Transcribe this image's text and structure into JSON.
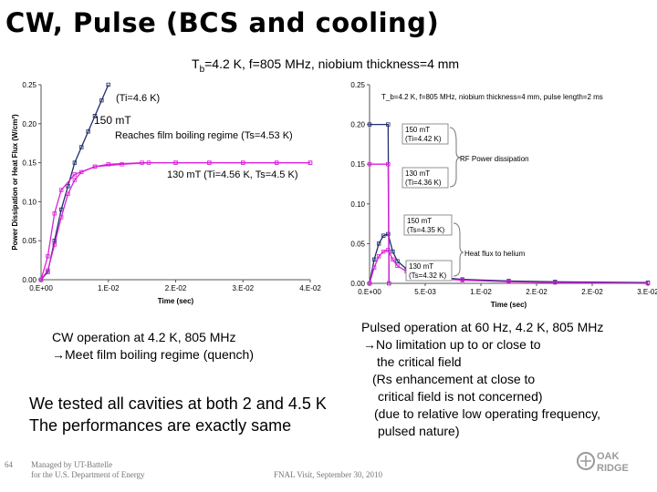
{
  "slide": {
    "title": "CW, Pulse (BCS and cooling)",
    "subtitle_main": "T",
    "subtitle_sub": "b",
    "subtitle_rest": "=4.2 K, f=805 MHz, niobium thickness=4 mm"
  },
  "left_chart": {
    "ylabel": "Power Dissipation or Heat Flux (W/cm²)",
    "xlabel": "Time (sec)",
    "yticks": [
      "0.00",
      "0.05",
      "0.10",
      "0.15",
      "0.20",
      "0.25"
    ],
    "xticks": [
      "0.E+00",
      "1.E-02",
      "2.E-02",
      "3.E-02",
      "4.E-02"
    ],
    "annotation_ti": "(Ti=4.6 K)",
    "annotation_150": "150 mT",
    "annotation_film": "Reaches film boiling regime (Ts=4.53 K)",
    "annotation_130": "130 mT (Ti=4.56 K, Ts=4.5 K)"
  },
  "right_chart": {
    "header": "T_b=4.2 K, f=805 MHz, niobium thickness=4 mm, pulse length=2 ms",
    "xlabel": "Time (sec)",
    "yticks": [
      "0.00",
      "0.05",
      "0.10",
      "0.15",
      "0.20",
      "0.25"
    ],
    "xticks": [
      "0.E+00",
      "5.E-03",
      "1.E-02",
      "2.E-02",
      "2.E-02",
      "3.E-02"
    ],
    "box1_line1": "150 mT",
    "box1_line2": "(Ti=4.42 K)",
    "box2_line1": "130 mT",
    "box2_line2": "(Ti=4.36 K)",
    "rf_label": "RF Power dissipation",
    "box3_line1": "150 mT",
    "box3_line2": "(Ts=4.35 K)",
    "hf_label": "Heat flux to helium",
    "box4_line1": "130 mT",
    "box4_line2": "(Ts=4.32 K)"
  },
  "chart_data": [
    {
      "type": "line",
      "title": "",
      "xlabel": "Time (sec)",
      "ylabel": "Power Dissipation or Heat Flux (W/cm²)",
      "xlim": [
        0,
        0.04
      ],
      "ylim": [
        0,
        0.25
      ],
      "series": [
        {
          "name": "150 mT",
          "color": "#1f2d6b",
          "x": [
            0,
            0.001,
            0.002,
            0.003,
            0.004,
            0.005,
            0.006,
            0.007,
            0.008,
            0.009,
            0.01
          ],
          "y": [
            0.0,
            0.01,
            0.05,
            0.09,
            0.12,
            0.15,
            0.17,
            0.19,
            0.21,
            0.23,
            0.25
          ]
        },
        {
          "name": "130 mT",
          "color": "#d81fd8",
          "x": [
            0,
            0.001,
            0.002,
            0.003,
            0.004,
            0.005,
            0.006,
            0.008,
            0.01,
            0.015,
            0.02,
            0.025,
            0.03,
            0.035,
            0.04
          ],
          "y": [
            0.0,
            0.012,
            0.045,
            0.08,
            0.11,
            0.128,
            0.138,
            0.145,
            0.148,
            0.15,
            0.15,
            0.15,
            0.15,
            0.15,
            0.15
          ]
        },
        {
          "name": "",
          "color": "#d81fd8",
          "x": [
            0,
            0.001,
            0.002,
            0.003,
            0.005,
            0.008,
            0.012,
            0.016,
            0.02,
            0.025,
            0.03,
            0.035,
            0.04
          ],
          "y": [
            0.0,
            0.03,
            0.085,
            0.115,
            0.135,
            0.145,
            0.148,
            0.15,
            0.15,
            0.15,
            0.15,
            0.15,
            0.15
          ]
        }
      ]
    },
    {
      "type": "line",
      "title": "T_b=4.2 K, f=805 MHz, niobium thickness=4 mm, pulse length=2 ms",
      "xlabel": "Time (sec)",
      "ylabel": "",
      "xlim": [
        0,
        0.03
      ],
      "ylim": [
        0,
        0.25
      ],
      "series": [
        {
          "name": "150 mT",
          "color": "#1f2d6b",
          "x": [
            0,
            0.0005,
            0.001,
            0.0015,
            0.002,
            0.0025,
            0.003,
            0.004,
            0.005,
            0.007,
            0.01,
            0.015,
            0.02,
            0.03
          ],
          "y": [
            0.0,
            0.03,
            0.05,
            0.06,
            0.062,
            0.04,
            0.028,
            0.018,
            0.012,
            0.008,
            0.005,
            0.003,
            0.002,
            0.001
          ]
        },
        {
          "name": "130 mT",
          "color": "#d81fd8",
          "x": [
            0,
            0.0005,
            0.001,
            0.0015,
            0.002,
            0.0025,
            0.003,
            0.004,
            0.005,
            0.007,
            0.01,
            0.015,
            0.02,
            0.03
          ],
          "y": [
            0.0,
            0.02,
            0.034,
            0.04,
            0.042,
            0.03,
            0.022,
            0.015,
            0.01,
            0.006,
            0.004,
            0.002,
            0.001,
            0.0
          ]
        },
        {
          "name": "",
          "color": "#1f2d6b",
          "x": [
            0,
            0.002,
            0.0021
          ],
          "y": [
            0.2,
            0.2,
            0.0
          ]
        },
        {
          "name": "",
          "color": "#d81fd8",
          "x": [
            0,
            0.002,
            0.0021
          ],
          "y": [
            0.15,
            0.15,
            0.0
          ]
        }
      ]
    }
  ],
  "body_text": {
    "cw_line1": "CW operation at 4.2 K, 805 MHz",
    "cw_line2": "→Meet film boiling regime (quench)",
    "pulsed_line1": "Pulsed operation at 60 Hz, 4.2 K, 805 MHz",
    "pulsed_line2": "→No limitation up to or close to",
    "pulsed_line3": "the critical field",
    "pulsed_line4": "(Rs enhancement at close to",
    "pulsed_line5": "critical field is not concerned)",
    "pulsed_line6": "(due to relative low operating frequency,",
    "pulsed_line7": "pulsed nature)",
    "tested_line1": "We tested all cavities at both 2 and 4.5 K",
    "tested_line2": "The performances are exactly same"
  },
  "footer": {
    "page_number": "64",
    "managed_line1": "Managed by UT-Battelle",
    "managed_line2": "for the U.S. Department of Energy",
    "event": "FNAL Visit, September 30, 2010",
    "logo_line1": "OAK",
    "logo_line2": "RIDGE"
  }
}
